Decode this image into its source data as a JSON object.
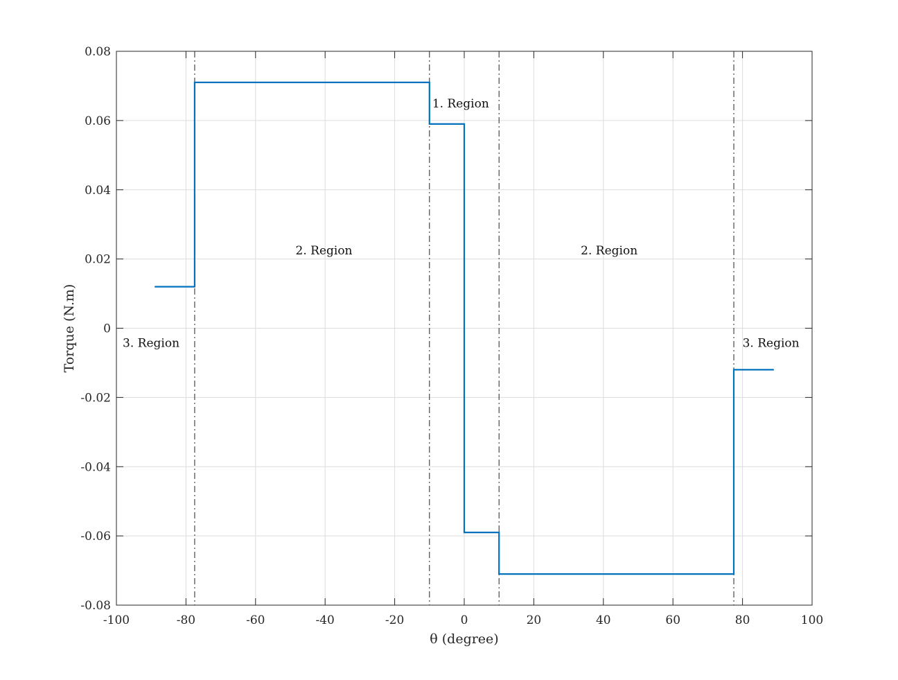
{
  "chart_data": {
    "type": "line",
    "xlabel": "θ (degree)",
    "ylabel": "Torque (N.m)",
    "xlim": [
      -100,
      100
    ],
    "ylim": [
      -0.08,
      0.08
    ],
    "xticks": [
      -100,
      -80,
      -60,
      -40,
      -20,
      0,
      20,
      40,
      60,
      80,
      100
    ],
    "xtick_labels": [
      "-100",
      "-80",
      "-60",
      "-40",
      "-20",
      "0",
      "20",
      "40",
      "60",
      "80",
      "100"
    ],
    "yticks": [
      -0.08,
      -0.06,
      -0.04,
      -0.02,
      0,
      0.02,
      0.04,
      0.06,
      0.08
    ],
    "ytick_labels": [
      "-0.08",
      "-0.06",
      "-0.04",
      "-0.02",
      "0",
      "0.02",
      "0.04",
      "0.06",
      "0.08"
    ],
    "grid": true,
    "series": [
      {
        "color": "#0072BD",
        "x": [
          -89,
          -77.5,
          -77.5,
          -10,
          -10,
          0,
          0,
          10,
          10,
          77.5,
          77.5,
          89
        ],
        "y": [
          0.012,
          0.012,
          0.071,
          0.071,
          0.059,
          0.059,
          -0.059,
          -0.059,
          -0.071,
          -0.071,
          -0.012,
          -0.012
        ]
      }
    ],
    "vlines": [
      -77.5,
      -10,
      10,
      77.5
    ],
    "vline_style": "dash-dot",
    "annotations": [
      {
        "text": "1. Region",
        "x": -9.2,
        "y": 0.065
      },
      {
        "text": "2. Region",
        "x": -48.5,
        "y": 0.0225
      },
      {
        "text": "2. Region",
        "x": 33.5,
        "y": 0.0225
      },
      {
        "text": "3. Region",
        "x": -98.2,
        "y": -0.0042
      },
      {
        "text": "3. Region",
        "x": 80,
        "y": -0.0042
      }
    ]
  }
}
